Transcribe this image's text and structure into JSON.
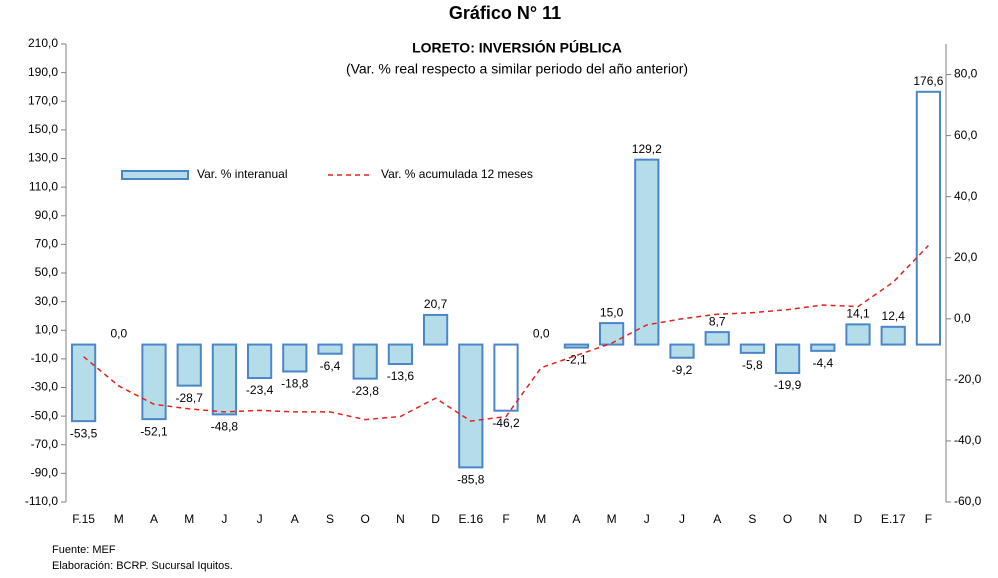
{
  "chart_data": {
    "type": "bar",
    "title": "Gráfico N° 11",
    "subtitle": "LORETO: INVERSIÓN PÚBLICA",
    "subtitle2": "(Var. % real respecto a similar periodo del año anterior)",
    "categories": [
      "F.15",
      "M",
      "A",
      "M",
      "J",
      "J",
      "A",
      "S",
      "O",
      "N",
      "D",
      "E.16",
      "F",
      "M",
      "A",
      "M",
      "J",
      "J",
      "A",
      "S",
      "O",
      "N",
      "D",
      "E.17",
      "F"
    ],
    "series": [
      {
        "name": "Var. % interanual",
        "type": "bar",
        "color": "#b4dde9",
        "edgecolor": "#4a86c8",
        "point_colors": [
          "#b4dde9",
          "#b4dde9",
          "#b4dde9",
          "#b4dde9",
          "#b4dde9",
          "#b4dde9",
          "#b4dde9",
          "#b4dde9",
          "#b4dde9",
          "#b4dde9",
          "#b4dde9",
          "#b4dde9",
          "#ffffff",
          "#b4dde9",
          "#b4dde9",
          "#b4dde9",
          "#b4dde9",
          "#b4dde9",
          "#b4dde9",
          "#b4dde9",
          "#b4dde9",
          "#b4dde9",
          "#b4dde9",
          "#b4dde9",
          "#ffffff"
        ],
        "values": [
          -53.5,
          0.0,
          -52.1,
          -28.7,
          -48.8,
          -23.4,
          -18.8,
          -6.4,
          -23.8,
          -13.6,
          20.7,
          -85.8,
          -46.2,
          0.0,
          -2.1,
          15.0,
          129.2,
          -9.2,
          8.7,
          -5.8,
          -19.9,
          -4.4,
          14.1,
          12.4,
          176.6
        ],
        "value_labels": [
          "-53,5",
          "0,0",
          "-52,1",
          "-28,7",
          "-48,8",
          "-23,4",
          "-18,8",
          "-6,4",
          "-23,8",
          "-13,6",
          "20,7",
          "-85,8",
          "-46,2",
          "0,0",
          "-2,1",
          "15,0",
          "129,2",
          "-9,2",
          "8,7",
          "-5,8",
          "-19,9",
          "-4,4",
          "14,1",
          "12,4",
          "176,6"
        ]
      },
      {
        "name": "Var. % acumulada 12 meses",
        "type": "line",
        "axis": "y2",
        "color": "#e8201c",
        "values": [
          -12.4,
          -22,
          -28,
          -29.5,
          -30.5,
          -30,
          -30.5,
          -30.5,
          -33,
          -32,
          -26,
          -33.5,
          -32,
          -16,
          -12,
          -8,
          -2,
          0,
          1.5,
          2,
          3,
          4.5,
          4,
          12,
          24
        ]
      }
    ],
    "ylim": [
      -110,
      210
    ],
    "yticks": [
      {
        "value": -110,
        "label": "-110,0"
      },
      {
        "value": -90,
        "label": "-90,0"
      },
      {
        "value": -70,
        "label": "-70,0"
      },
      {
        "value": -50,
        "label": "-50,0"
      },
      {
        "value": -30,
        "label": "-30,0"
      },
      {
        "value": -10,
        "label": "-10,0"
      },
      {
        "value": 10,
        "label": "10,0"
      },
      {
        "value": 30,
        "label": "30,0"
      },
      {
        "value": 50,
        "label": "50,0"
      },
      {
        "value": 70,
        "label": "70,0"
      },
      {
        "value": 90,
        "label": "90,0"
      },
      {
        "value": 110,
        "label": "110,0"
      },
      {
        "value": 130,
        "label": "130,0"
      },
      {
        "value": 150,
        "label": "150,0"
      },
      {
        "value": 170,
        "label": "170,0"
      },
      {
        "value": 190,
        "label": "190,0"
      },
      {
        "value": 210,
        "label": "210,0"
      }
    ],
    "y2lim": [
      -60,
      90
    ],
    "y2ticks": [
      {
        "value": -60,
        "label": "-60,0"
      },
      {
        "value": -40,
        "label": "-40,0"
      },
      {
        "value": -20,
        "label": "-20,0"
      },
      {
        "value": 0,
        "label": "0,0"
      },
      {
        "value": 20,
        "label": "20,0"
      },
      {
        "value": 40,
        "label": "40,0"
      },
      {
        "value": 60,
        "label": "60,0"
      },
      {
        "value": 80,
        "label": "80,0"
      }
    ],
    "grid": false,
    "legend": "upper left",
    "source": "Fuente: MEF",
    "credit": "Elaboración: BCRP. Sucursal Iquitos."
  }
}
